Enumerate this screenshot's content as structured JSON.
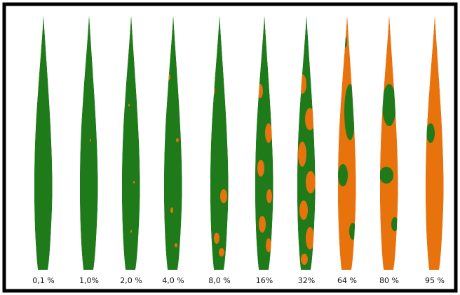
{
  "leaves": [
    {
      "label": "0,1 %"
    },
    {
      "label": "1,0%"
    },
    {
      "label": "2,0 %"
    },
    {
      "label": "4,0 %"
    },
    {
      "label": "8,0 %"
    },
    {
      "label": "16%"
    },
    {
      "label": "32%"
    },
    {
      "label": "64 %"
    },
    {
      "label": "80 %"
    },
    {
      "label": "95 %"
    }
  ]
}
